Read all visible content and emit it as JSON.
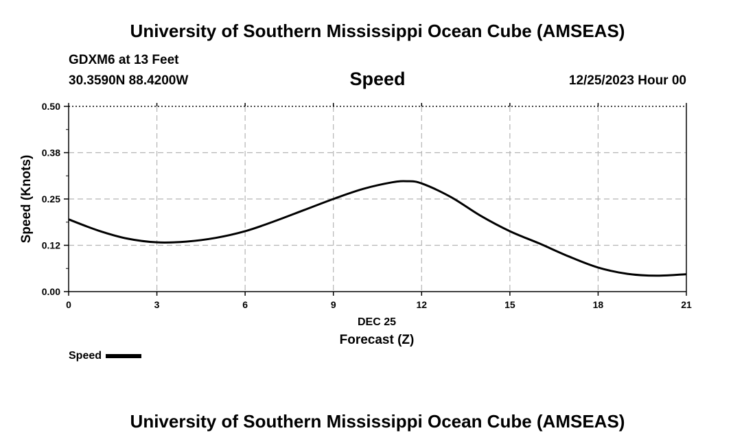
{
  "header": {
    "title": "University of Southern Mississippi Ocean Cube (AMSEAS)",
    "station": "GDXM6 at 13 Feet",
    "coords": "30.3590N  88.4200W",
    "subtitle": "Speed",
    "datetime": "12/25/2023 Hour 00"
  },
  "footer": {
    "title": "University of Southern Mississippi Ocean Cube (AMSEAS)"
  },
  "legend": {
    "label": "Speed",
    "color": "#000000"
  },
  "chart_data": {
    "type": "line",
    "title": "Speed",
    "xlabel": "Forecast (Z)",
    "xlabel_date": "DEC 25",
    "ylabel": "Speed (Knots)",
    "xlim": [
      0,
      21
    ],
    "ylim": [
      0,
      0.5
    ],
    "xticks": [
      0,
      3,
      6,
      9,
      12,
      15,
      18,
      21
    ],
    "xtick_labels": [
      "0",
      "3",
      "6",
      "9",
      "12",
      "15",
      "18",
      "21"
    ],
    "yticks": [
      0.0,
      0.125,
      0.25,
      0.375,
      0.5
    ],
    "ytick_labels": [
      "0.00",
      "0.12",
      "0.25",
      "0.38",
      "0.50"
    ],
    "grid": true,
    "series": [
      {
        "name": "Speed",
        "color": "#000000",
        "x": [
          0,
          1,
          2,
          3,
          4,
          5,
          6,
          7,
          8,
          9,
          10,
          11,
          11.5,
          12,
          13,
          14,
          15,
          16,
          17,
          18,
          19,
          20,
          21
        ],
        "y": [
          0.195,
          0.165,
          0.143,
          0.133,
          0.135,
          0.145,
          0.163,
          0.19,
          0.22,
          0.25,
          0.277,
          0.295,
          0.298,
          0.292,
          0.255,
          0.205,
          0.163,
          0.13,
          0.095,
          0.065,
          0.048,
          0.043,
          0.047
        ]
      }
    ]
  }
}
